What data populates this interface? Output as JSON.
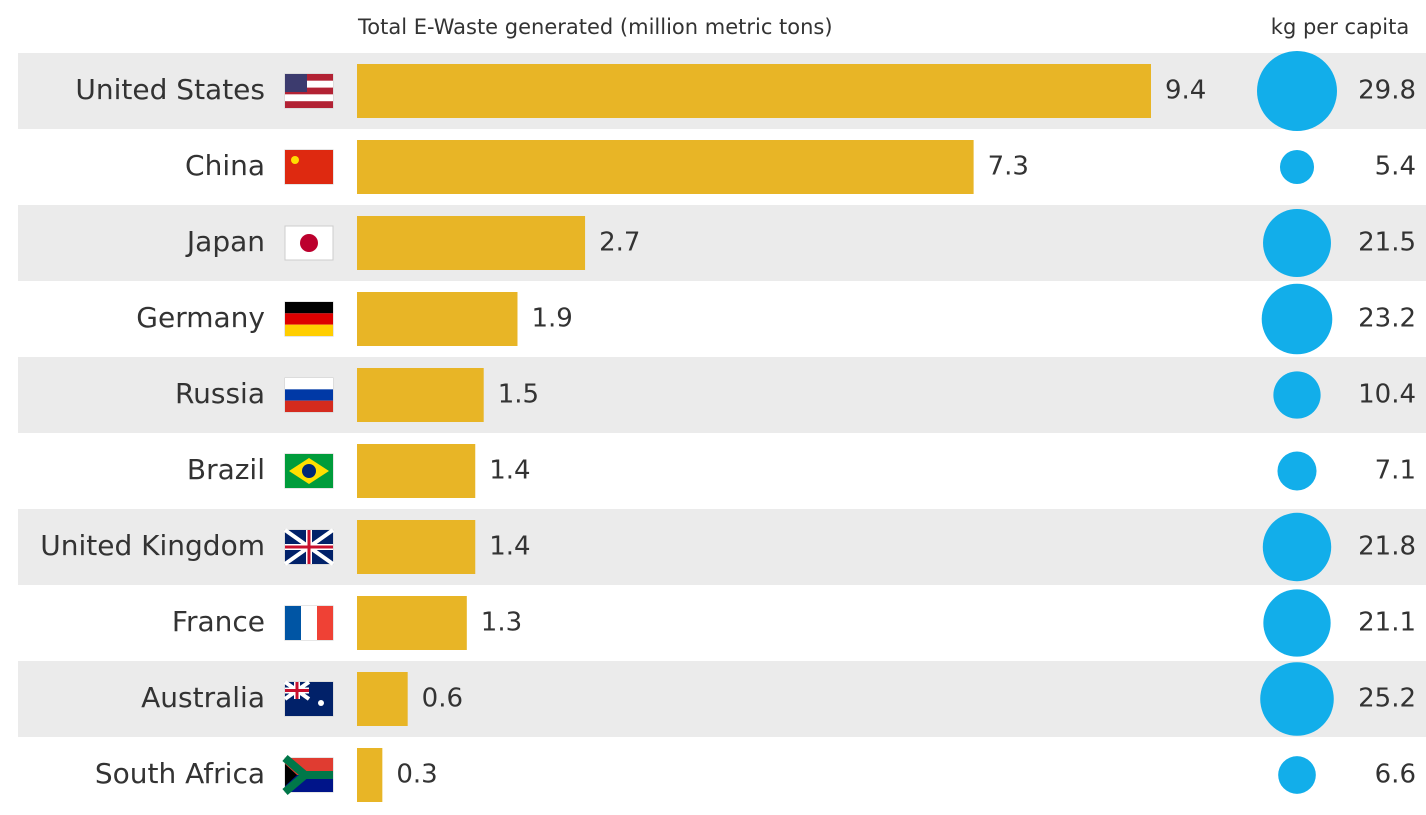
{
  "chart_data": {
    "type": "bar",
    "categories": [
      "United States",
      "China",
      "Japan",
      "Germany",
      "Russia",
      "Brazil",
      "United Kingdom",
      "France",
      "Australia",
      "South Africa"
    ],
    "series": [
      {
        "name": "Total E-Waste generated (million metric tons)",
        "color": "#e8b526",
        "values": [
          9.4,
          7.3,
          2.7,
          1.9,
          1.5,
          1.4,
          1.4,
          1.3,
          0.6,
          0.3
        ]
      },
      {
        "name": "kg per capita",
        "type": "bubble",
        "color": "#12aeea",
        "values": [
          29.8,
          5.4,
          21.5,
          23.2,
          10.4,
          7.1,
          21.8,
          21.1,
          25.2,
          6.6
        ]
      }
    ]
  }
}
